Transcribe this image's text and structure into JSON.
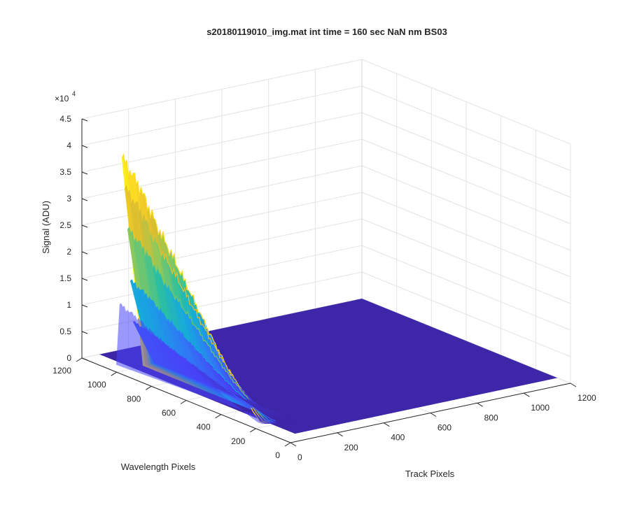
{
  "chart_data": {
    "type": "surface3d",
    "title": "s20180119010_img.mat int time = 160 sec  NaN nm BS03",
    "xlabel": "Track Pixels",
    "ylabel": "Wavelength Pixels",
    "zlabel": "Signal (ADU)",
    "z_exponent_label": "×10",
    "z_exponent_power": "4",
    "xlim": [
      0,
      1200
    ],
    "ylim": [
      0,
      1200
    ],
    "zlim": [
      0,
      4.5
    ],
    "x_ticks": [
      0,
      200,
      400,
      600,
      800,
      1000,
      1200
    ],
    "y_ticks": [
      0,
      200,
      400,
      600,
      800,
      1000,
      1200
    ],
    "z_ticks": [
      0,
      0.5,
      1,
      1.5,
      2,
      2.5,
      3,
      3.5,
      4,
      4.5
    ],
    "grid": true,
    "colormap": [
      "#3e26a8",
      "#4743f7",
      "#2f7bf5",
      "#16a9de",
      "#2dc09f",
      "#8dc95c",
      "#dbbd30",
      "#fbd427",
      "#f9fb0e"
    ],
    "peak": {
      "track_pixels": 60,
      "wavelength_pixels": 1050,
      "signal": 3.9
    },
    "ridge_profile": [
      {
        "wavelength": 1050,
        "signal": 3.9
      },
      {
        "wavelength": 950,
        "signal": 3.5
      },
      {
        "wavelength": 850,
        "signal": 2.9
      },
      {
        "wavelength": 750,
        "signal": 2.4
      },
      {
        "wavelength": 650,
        "signal": 1.85
      },
      {
        "wavelength": 550,
        "signal": 1.3
      },
      {
        "wavelength": 450,
        "signal": 0.8
      },
      {
        "wavelength": 350,
        "signal": 0.4
      },
      {
        "wavelength": 300,
        "signal": 0.15
      },
      {
        "wavelength": 260,
        "signal": 0.02
      }
    ]
  }
}
